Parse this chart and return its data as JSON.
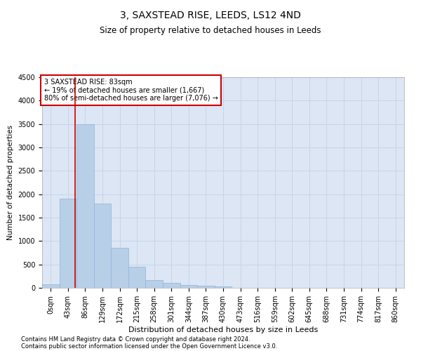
{
  "title": "3, SAXSTEAD RISE, LEEDS, LS12 4ND",
  "subtitle": "Size of property relative to detached houses in Leeds",
  "xlabel": "Distribution of detached houses by size in Leeds",
  "ylabel": "Number of detached properties",
  "annotation_title": "3 SAXSTEAD RISE: 83sqm",
  "annotation_line1": "← 19% of detached houses are smaller (1,667)",
  "annotation_line2": "80% of semi-detached houses are larger (7,076) →",
  "footer_line1": "Contains HM Land Registry data © Crown copyright and database right 2024.",
  "footer_line2": "Contains public sector information licensed under the Open Government Licence v3.0.",
  "bar_labels": [
    "0sqm",
    "43sqm",
    "86sqm",
    "129sqm",
    "172sqm",
    "215sqm",
    "258sqm",
    "301sqm",
    "344sqm",
    "387sqm",
    "430sqm",
    "473sqm",
    "516sqm",
    "559sqm",
    "602sqm",
    "645sqm",
    "688sqm",
    "731sqm",
    "774sqm",
    "817sqm",
    "860sqm"
  ],
  "bar_values": [
    80,
    1900,
    3500,
    1800,
    850,
    450,
    170,
    100,
    60,
    50,
    30,
    0,
    0,
    0,
    0,
    0,
    0,
    0,
    0,
    0,
    0
  ],
  "bar_color": "#b8cfe8",
  "bar_edge_color": "#90b4d8",
  "vline_color": "#cc0000",
  "vline_x": 1.93,
  "annotation_box_color": "#ffffff",
  "annotation_box_edge": "#cc0000",
  "grid_color": "#c8d4e8",
  "bg_color": "#dce6f4",
  "ylim": [
    0,
    4500
  ],
  "yticks": [
    0,
    500,
    1000,
    1500,
    2000,
    2500,
    3000,
    3500,
    4000,
    4500
  ],
  "title_fontsize": 10,
  "subtitle_fontsize": 8.5,
  "tick_fontsize": 7,
  "ylabel_fontsize": 7.5,
  "xlabel_fontsize": 8,
  "annotation_fontsize": 7,
  "footer_fontsize": 6
}
